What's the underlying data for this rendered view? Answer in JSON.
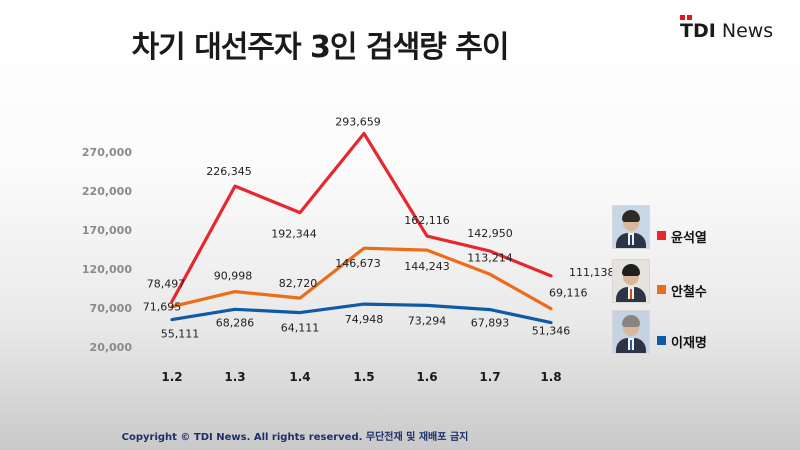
{
  "title": "차기 대선주자 3인 검색량 추이",
  "logo": {
    "brand": "TDI",
    "suffix": "News"
  },
  "copyright": "Copyright © TDI News. All rights reserved. 무단전재 및 재배포 금지",
  "chart_data": {
    "type": "line",
    "title": "차기 대선주자 3인 검색량 추이",
    "xlabel": "",
    "ylabel": "",
    "categories": [
      "1.2",
      "1.3",
      "1.4",
      "1.5",
      "1.6",
      "1.7",
      "1.8"
    ],
    "yticks": [
      "20,000",
      "70,000",
      "120,000",
      "170,000",
      "220,000",
      "270,000"
    ],
    "ylim": [
      20000,
      305000
    ],
    "grid": false,
    "legend_position": "right",
    "series": [
      {
        "name": "윤석열",
        "color": "#e8262d",
        "values": [
          78497,
          226345,
          192344,
          293659,
          162116,
          142950,
          111138
        ],
        "labels": [
          "78,497",
          "226,345",
          "192,344",
          "293,659",
          "162,116",
          "142,950",
          "111,138"
        ]
      },
      {
        "name": "안철수",
        "color": "#ec6c19",
        "values": [
          71695,
          90998,
          82720,
          146673,
          144243,
          113214,
          69116
        ],
        "labels": [
          "71,695",
          "90,998",
          "82,720",
          "146,673",
          "144,243",
          "113,214",
          "69,116"
        ]
      },
      {
        "name": "이재명",
        "color": "#0e5aa7",
        "values": [
          55111,
          68286,
          64111,
          74948,
          73294,
          67893,
          51346
        ],
        "labels": [
          "55,111",
          "68,286",
          "64,111",
          "74,948",
          "73,294",
          "67,893",
          "51,346"
        ]
      }
    ]
  }
}
